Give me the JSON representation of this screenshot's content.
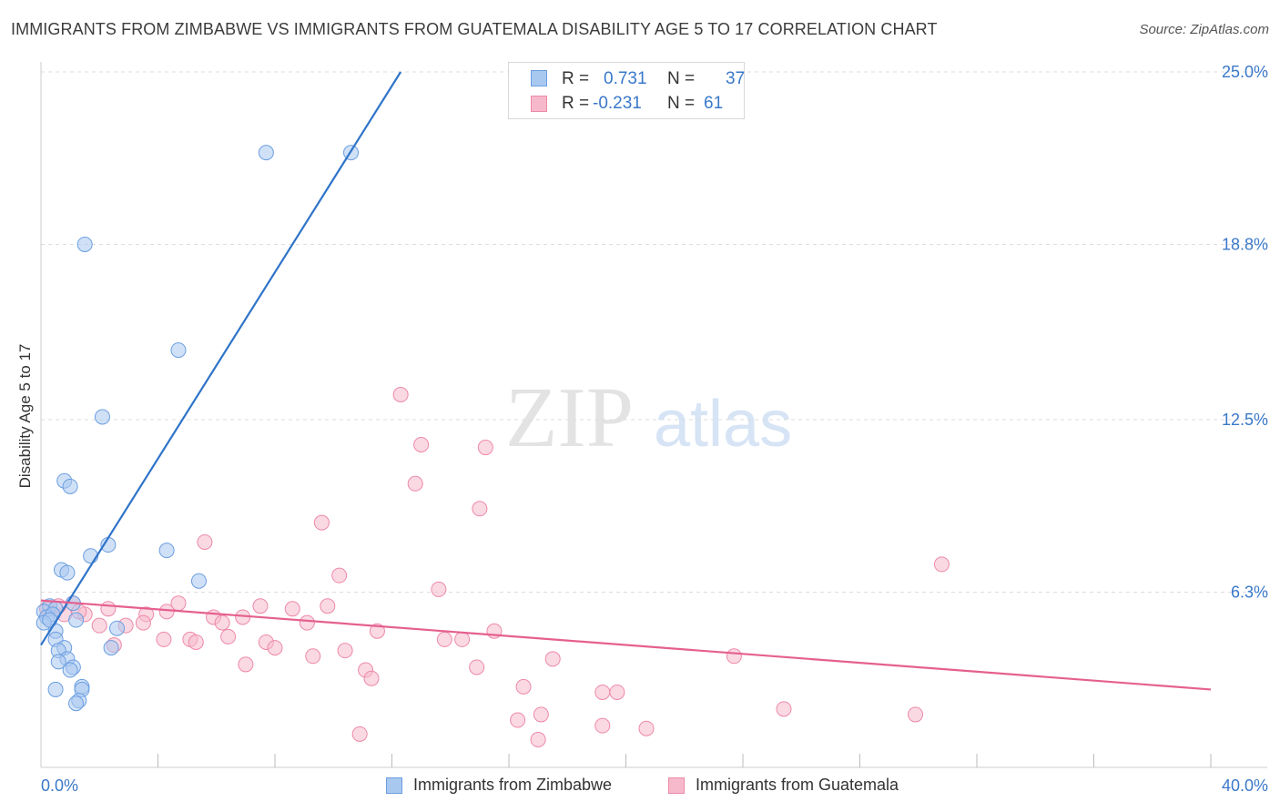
{
  "title": "IMMIGRANTS FROM ZIMBABWE VS IMMIGRANTS FROM GUATEMALA DISABILITY AGE 5 TO 17 CORRELATION CHART",
  "source": "Source: ZipAtlas.com",
  "watermark": {
    "zip": "ZIP",
    "atlas": "atlas"
  },
  "colors": {
    "zimbabwe_fill": "#a9c8f0",
    "zimbabwe_stroke": "#6b9ee0",
    "zimbabwe_line": "#2f74c8",
    "guatemala_fill": "#f6b9cc",
    "guatemala_stroke": "#ee89a8",
    "guatemala_line": "#e5608f",
    "axis_label": "#3a78c9",
    "grid": "#dddddd"
  },
  "legend_top": {
    "rows": [
      {
        "r_label": "R =",
        "r_value": "0.731",
        "n_label": "N =",
        "n_value": "37"
      },
      {
        "r_label": "R =",
        "r_value": "-0.231",
        "n_label": "N =",
        "n_value": "61"
      }
    ]
  },
  "legend_bottom": {
    "zimbabwe": "Immigrants from Zimbabwe",
    "guatemala": "Immigrants from Guatemala"
  },
  "chart_data": {
    "type": "scatter",
    "title": "IMMIGRANTS FROM ZIMBABWE VS IMMIGRANTS FROM GUATEMALA DISABILITY AGE 5 TO 17 CORRELATION CHART",
    "xlabel": "",
    "ylabel": "Disability Age 5 to 17",
    "xlim": [
      0,
      40
    ],
    "ylim": [
      0,
      25
    ],
    "x_tick_labels": [
      "0.0%",
      "40.0%"
    ],
    "y_ticks": [
      6.3,
      12.5,
      18.8,
      25.0
    ],
    "y_tick_labels": [
      "6.3%",
      "12.5%",
      "18.8%",
      "25.0%"
    ],
    "grid": "horizontal dashed",
    "legend_position": "top-center and bottom",
    "series": [
      {
        "name": "Immigrants from Zimbabwe",
        "R": 0.731,
        "N": 37,
        "trend": {
          "x0": 0.0,
          "y0": 4.4,
          "x1": 12.3,
          "y1": 25.0
        },
        "points": [
          [
            7.7,
            22.1
          ],
          [
            10.6,
            22.1
          ],
          [
            1.5,
            18.8
          ],
          [
            4.7,
            15.0
          ],
          [
            2.1,
            12.6
          ],
          [
            0.8,
            10.3
          ],
          [
            1.0,
            10.1
          ],
          [
            2.3,
            8.0
          ],
          [
            1.7,
            7.6
          ],
          [
            4.3,
            7.8
          ],
          [
            0.7,
            7.1
          ],
          [
            0.9,
            7.0
          ],
          [
            5.4,
            6.7
          ],
          [
            1.1,
            5.9
          ],
          [
            0.3,
            5.8
          ],
          [
            0.5,
            5.7
          ],
          [
            0.1,
            5.6
          ],
          [
            0.2,
            5.4
          ],
          [
            0.4,
            5.5
          ],
          [
            1.2,
            5.3
          ],
          [
            0.1,
            5.2
          ],
          [
            0.5,
            4.9
          ],
          [
            2.6,
            5.0
          ],
          [
            0.5,
            4.6
          ],
          [
            2.4,
            4.3
          ],
          [
            0.8,
            4.3
          ],
          [
            0.6,
            4.2
          ],
          [
            0.9,
            3.9
          ],
          [
            0.6,
            3.8
          ],
          [
            1.1,
            3.6
          ],
          [
            1.0,
            3.5
          ],
          [
            1.4,
            2.9
          ],
          [
            0.5,
            2.8
          ],
          [
            1.4,
            2.8
          ],
          [
            1.3,
            2.4
          ],
          [
            1.2,
            2.3
          ],
          [
            0.3,
            5.3
          ]
        ]
      },
      {
        "name": "Immigrants from Guatemala",
        "R": -0.231,
        "N": 61,
        "trend": {
          "x0": 0.0,
          "y0": 6.0,
          "x1": 40.0,
          "y1": 2.8
        },
        "points": [
          [
            12.3,
            13.4
          ],
          [
            13.0,
            11.6
          ],
          [
            15.2,
            11.5
          ],
          [
            12.8,
            10.2
          ],
          [
            15.0,
            9.3
          ],
          [
            9.6,
            8.8
          ],
          [
            5.6,
            8.1
          ],
          [
            30.8,
            7.3
          ],
          [
            10.2,
            6.9
          ],
          [
            13.6,
            6.4
          ],
          [
            4.7,
            5.9
          ],
          [
            7.5,
            5.8
          ],
          [
            8.6,
            5.7
          ],
          [
            9.8,
            5.8
          ],
          [
            2.3,
            5.7
          ],
          [
            4.3,
            5.6
          ],
          [
            3.6,
            5.5
          ],
          [
            1.5,
            5.5
          ],
          [
            5.9,
            5.4
          ],
          [
            6.9,
            5.4
          ],
          [
            0.3,
            5.7
          ],
          [
            0.8,
            5.5
          ],
          [
            2.0,
            5.1
          ],
          [
            2.9,
            5.1
          ],
          [
            3.5,
            5.2
          ],
          [
            6.2,
            5.2
          ],
          [
            9.1,
            5.2
          ],
          [
            11.5,
            4.9
          ],
          [
            15.5,
            4.9
          ],
          [
            4.2,
            4.6
          ],
          [
            5.1,
            4.6
          ],
          [
            5.3,
            4.5
          ],
          [
            6.4,
            4.7
          ],
          [
            7.7,
            4.5
          ],
          [
            13.8,
            4.6
          ],
          [
            14.4,
            4.6
          ],
          [
            2.5,
            4.4
          ],
          [
            8.0,
            4.3
          ],
          [
            10.4,
            4.2
          ],
          [
            9.3,
            4.0
          ],
          [
            17.5,
            3.9
          ],
          [
            23.7,
            4.0
          ],
          [
            7.0,
            3.7
          ],
          [
            11.1,
            3.5
          ],
          [
            14.9,
            3.6
          ],
          [
            11.3,
            3.2
          ],
          [
            16.5,
            2.9
          ],
          [
            19.2,
            2.7
          ],
          [
            19.7,
            2.7
          ],
          [
            25.4,
            2.1
          ],
          [
            29.9,
            1.9
          ],
          [
            17.1,
            1.9
          ],
          [
            16.3,
            1.7
          ],
          [
            19.2,
            1.5
          ],
          [
            20.7,
            1.4
          ],
          [
            10.9,
            1.2
          ],
          [
            17.0,
            1.0
          ],
          [
            1.1,
            5.9
          ],
          [
            0.6,
            5.8
          ],
          [
            0.2,
            5.7
          ],
          [
            1.3,
            5.6
          ]
        ]
      }
    ]
  }
}
